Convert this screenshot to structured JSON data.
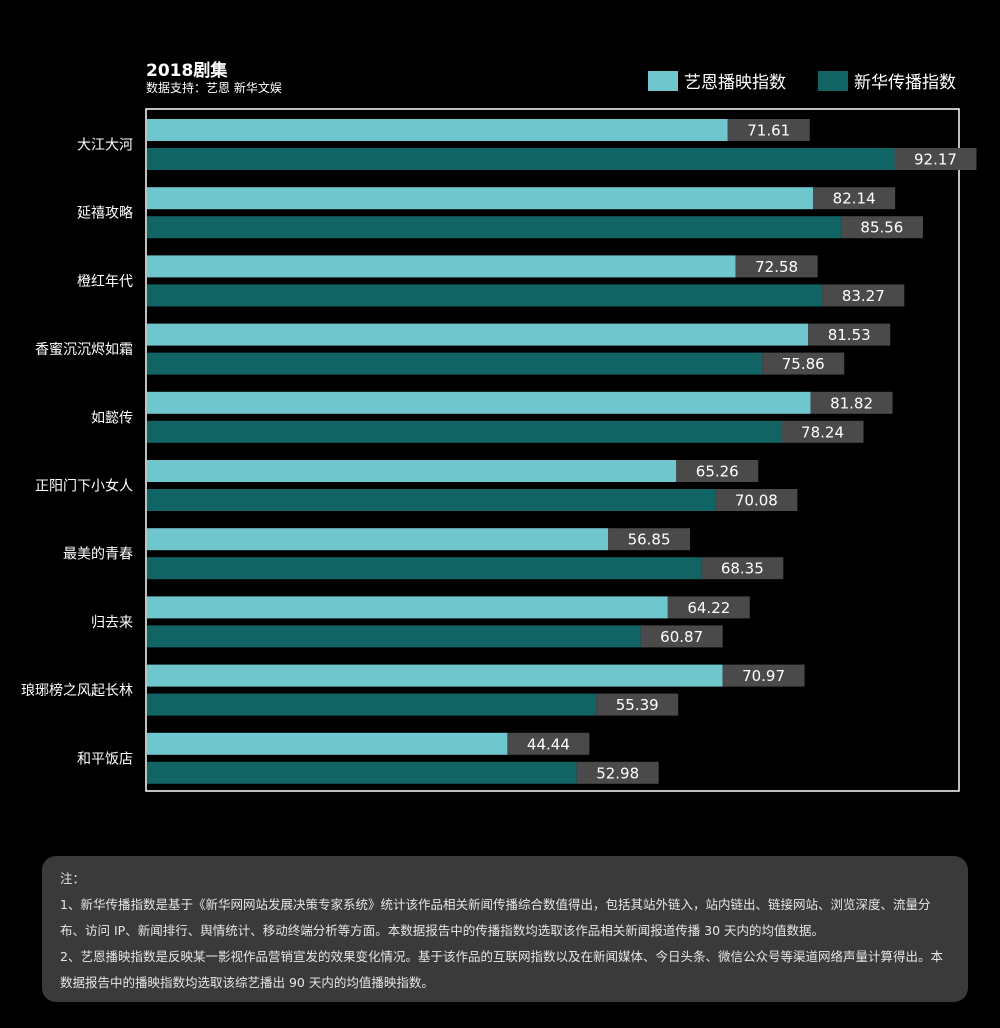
{
  "colors": {
    "yien": "#6fc6cc",
    "xinhua": "#116464",
    "label_bg": "#4a4a4a",
    "background": "#000000",
    "axis": "#ffffff"
  },
  "chart_data": {
    "type": "bar",
    "orientation": "horizontal",
    "title": "2018剧集",
    "subtitle": "数据支持：艺恩 新华文娱",
    "legend_position": "top-right",
    "categories": [
      "大江大河",
      "延禧攻略",
      "橙红年代",
      "香蜜沉沉烬如霜",
      "如懿传",
      "正阳门下小女人",
      "最美的青春",
      "归去来",
      "琅琊榜之风起长林",
      "和平饭店"
    ],
    "series": [
      {
        "name": "艺恩播映指数",
        "values": [
          71.61,
          82.14,
          72.58,
          81.53,
          81.82,
          65.26,
          56.85,
          64.22,
          70.97,
          44.44
        ]
      },
      {
        "name": "新华传播指数",
        "values": [
          92.17,
          85.56,
          83.27,
          75.86,
          78.24,
          70.08,
          68.35,
          60.87,
          55.39,
          52.98
        ]
      }
    ],
    "xlim": [
      0,
      100
    ],
    "grid": false
  },
  "notes": {
    "heading": "注：",
    "line1": "1、新华传播指数是基于《新华网网站发展决策专家系统》统计该作品相关新闻传播综合数值得出，包括其站外链入，站内链出、链接网站、浏览深度、流量分布、访问 IP、新闻排行、舆情统计、移动终端分析等方面。本数据报告中的传播指数均选取该作品相关新闻报道传播 30 天内的均值数据。",
    "line2": "2、艺恩播映指数是反映某一影视作品营销宣发的效果变化情况。基于该作品的互联网指数以及在新闻媒体、今日头条、微信公众号等渠道网络声量计算得出。本数据报告中的播映指数均选取该综艺播出 90 天内的均值播映指数。"
  }
}
